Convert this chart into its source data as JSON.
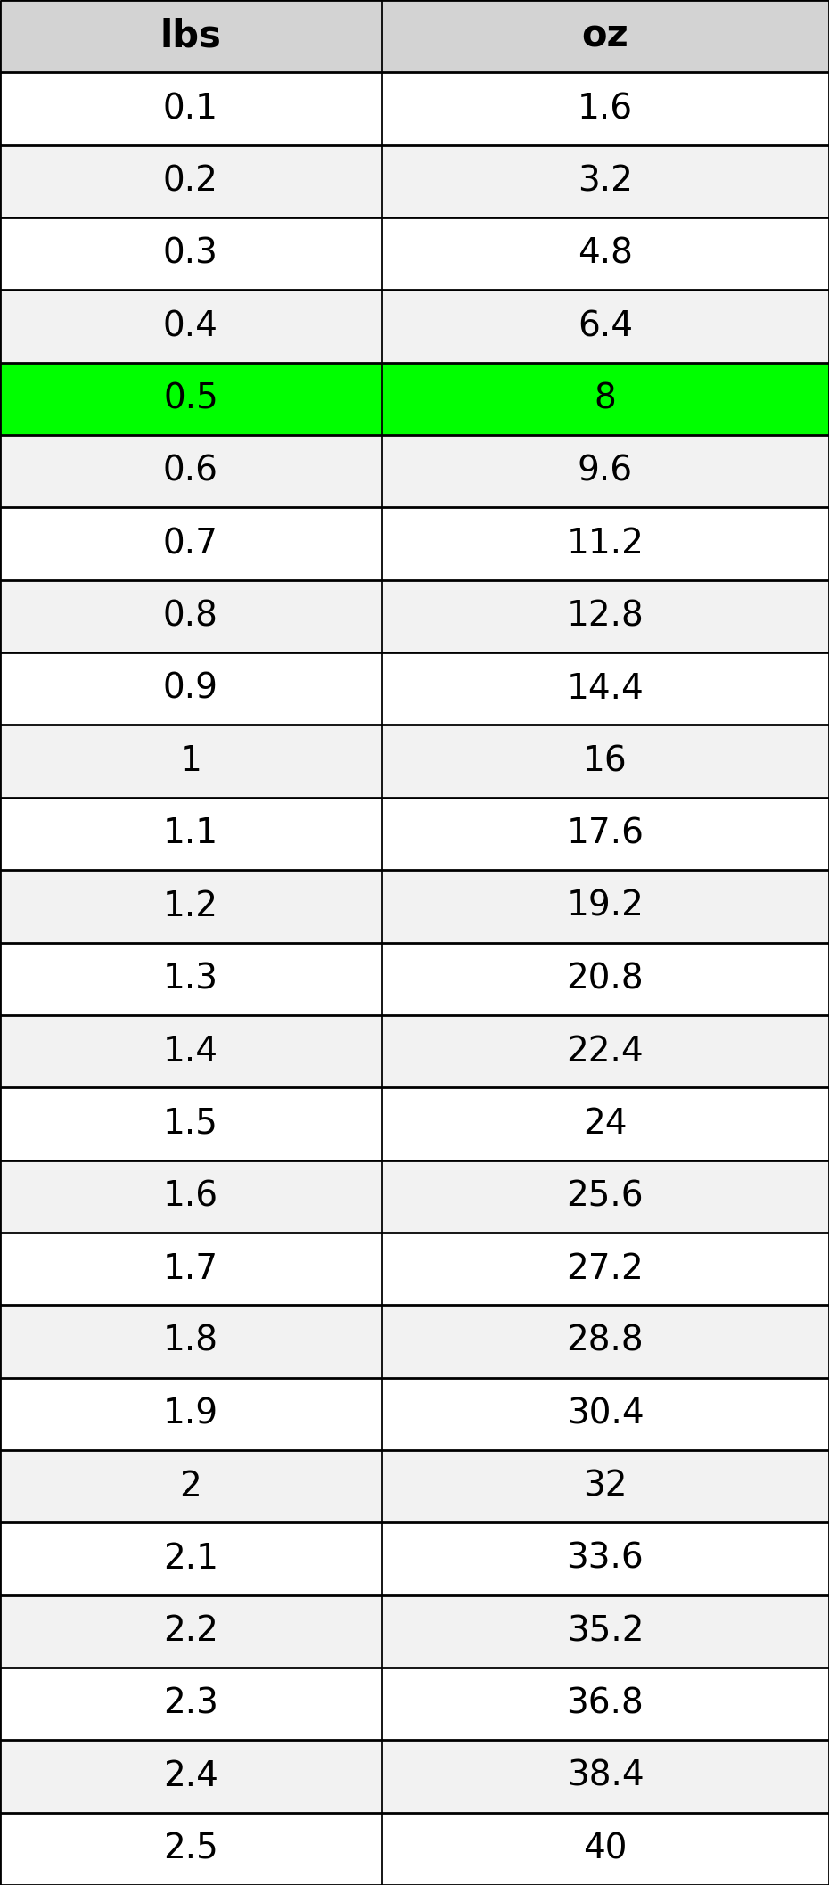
{
  "headers": [
    "lbs",
    "oz"
  ],
  "rows": [
    [
      "0.1",
      "1.6"
    ],
    [
      "0.2",
      "3.2"
    ],
    [
      "0.3",
      "4.8"
    ],
    [
      "0.4",
      "6.4"
    ],
    [
      "0.5",
      "8"
    ],
    [
      "0.6",
      "9.6"
    ],
    [
      "0.7",
      "11.2"
    ],
    [
      "0.8",
      "12.8"
    ],
    [
      "0.9",
      "14.4"
    ],
    [
      "1",
      "16"
    ],
    [
      "1.1",
      "17.6"
    ],
    [
      "1.2",
      "19.2"
    ],
    [
      "1.3",
      "20.8"
    ],
    [
      "1.4",
      "22.4"
    ],
    [
      "1.5",
      "24"
    ],
    [
      "1.6",
      "25.6"
    ],
    [
      "1.7",
      "27.2"
    ],
    [
      "1.8",
      "28.8"
    ],
    [
      "1.9",
      "30.4"
    ],
    [
      "2",
      "32"
    ],
    [
      "2.1",
      "33.6"
    ],
    [
      "2.2",
      "35.2"
    ],
    [
      "2.3",
      "36.8"
    ],
    [
      "2.4",
      "38.4"
    ],
    [
      "2.5",
      "40"
    ]
  ],
  "highlight_row": 4,
  "header_bg": "#d3d3d3",
  "row_bg_odd": "#ffffff",
  "row_bg_even": "#f2f2f2",
  "highlight_bg": "#00ff00",
  "text_color": "#000000",
  "border_color": "#000000",
  "header_font_size": 30,
  "cell_font_size": 28,
  "col_split": 0.46,
  "figure_width": 9.3,
  "figure_height": 21.15
}
